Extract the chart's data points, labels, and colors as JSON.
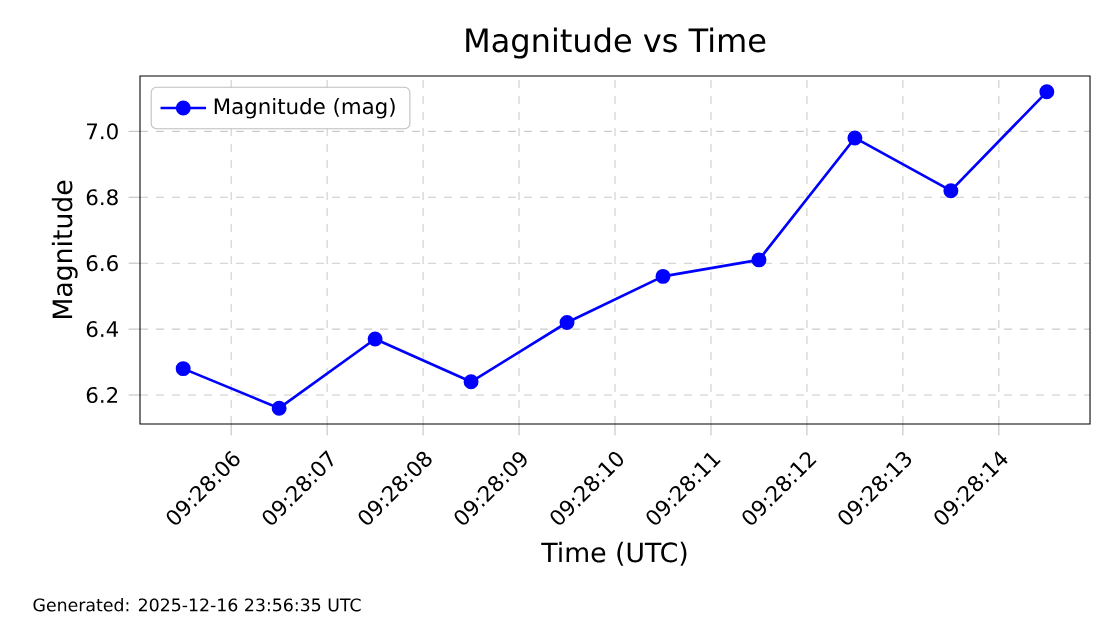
{
  "chart_data": {
    "type": "line",
    "title": "Magnitude vs Time",
    "xlabel": "Time (UTC)",
    "ylabel": "Magnitude",
    "x": [
      9.46819444,
      9.46847222,
      9.46875,
      9.46902778,
      9.46930556,
      9.46958333,
      9.46986111,
      9.47013889,
      9.47041667,
      9.47069444
    ],
    "series": [
      {
        "name": "Magnitude (mag)",
        "color": "#0000ff",
        "values": [
          6.28,
          6.16,
          6.37,
          6.24,
          6.42,
          6.56,
          6.61,
          6.98,
          6.82,
          7.12
        ]
      }
    ],
    "xlim": [
      9.46806944,
      9.47081944
    ],
    "xticks": [
      {
        "value": 9.46833333,
        "label": "09:28:06"
      },
      {
        "value": 9.46861111,
        "label": "09:28:07"
      },
      {
        "value": 9.46888889,
        "label": "09:28:08"
      },
      {
        "value": 9.46916667,
        "label": "09:28:09"
      },
      {
        "value": 9.46944444,
        "label": "09:28:10"
      },
      {
        "value": 9.46972222,
        "label": "09:28:11"
      },
      {
        "value": 9.47,
        "label": "09:28:12"
      },
      {
        "value": 9.47027778,
        "label": "09:28:13"
      },
      {
        "value": 9.47055556,
        "label": "09:28:14"
      }
    ],
    "ylim": [
      6.112,
      7.168
    ],
    "yticks": [
      6.2,
      6.4,
      6.6,
      6.8,
      {
        "value": 7,
        "label": "7.0"
      }
    ],
    "grid": true,
    "legend": "top left",
    "marker": "circle",
    "line_style": "solid",
    "annotations": [
      "Generated: 2025-12-16 23:56:35 UTC"
    ]
  }
}
